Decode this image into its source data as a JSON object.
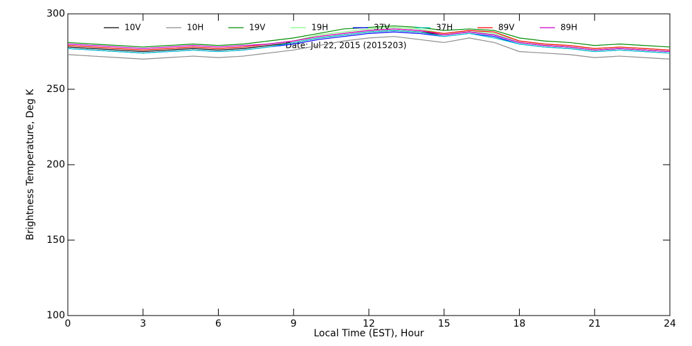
{
  "chart_data": {
    "type": "line",
    "title": "Date: Jul 22, 2015 (2015203)",
    "x_label": "Local Time (EST), Hour",
    "y_label": "Brightness Temperature, Deg K",
    "x": [
      0,
      1,
      2,
      3,
      4,
      5,
      6,
      7,
      8,
      9,
      10,
      11,
      12,
      13,
      14,
      15,
      16,
      17,
      18,
      19,
      20,
      21,
      22,
      23,
      24
    ],
    "xlim": [
      0,
      24
    ],
    "xticks": [
      0,
      3,
      6,
      9,
      12,
      15,
      18,
      21,
      24
    ],
    "ylim": [
      100,
      300
    ],
    "yticks": [
      100,
      150,
      200,
      250,
      300
    ],
    "series": [
      {
        "name": "10V",
        "color": "#000000",
        "values": [
          278,
          277,
          276,
          275,
          276,
          277,
          276,
          277,
          279,
          281,
          284,
          286,
          288,
          289,
          288,
          286,
          288,
          286,
          281,
          279,
          278,
          276,
          277,
          276,
          275
        ]
      },
      {
        "name": "10H",
        "color": "#8c8c8c",
        "values": [
          273,
          272,
          271,
          270,
          271,
          272,
          271,
          272,
          274,
          276,
          279,
          282,
          284,
          285,
          283,
          281,
          284,
          281,
          275,
          274,
          273,
          271,
          272,
          271,
          270
        ]
      },
      {
        "name": "19V",
        "color": "#008c00",
        "values": [
          281,
          280,
          279,
          278,
          279,
          280,
          279,
          280,
          282,
          284,
          287,
          290,
          291,
          292,
          291,
          289,
          290,
          289,
          284,
          282,
          281,
          279,
          280,
          279,
          278
        ]
      },
      {
        "name": "19H",
        "color": "#7fff7f",
        "values": [
          279,
          278,
          277,
          276,
          277,
          278,
          277,
          278,
          280,
          282,
          286,
          288,
          290,
          291,
          290,
          287,
          289,
          287,
          282,
          280,
          279,
          277,
          278,
          277,
          276
        ]
      },
      {
        "name": "37V",
        "color": "#0000ff",
        "values": [
          277,
          276,
          275,
          274,
          275,
          276,
          275,
          276,
          278,
          280,
          283,
          285,
          287,
          288,
          287,
          285,
          287,
          285,
          280,
          278,
          277,
          275,
          276,
          275,
          274
        ]
      },
      {
        "name": "37H",
        "color": "#00c8c8",
        "values": [
          277,
          276,
          275,
          274,
          275,
          276,
          275,
          276,
          278,
          281,
          284,
          286,
          288,
          289,
          288,
          285,
          287,
          284,
          280,
          278,
          277,
          275,
          276,
          275,
          274
        ]
      },
      {
        "name": "89V",
        "color": "#ff0000",
        "values": [
          279,
          278,
          277,
          276,
          277,
          278,
          277,
          278,
          280,
          282,
          285,
          287,
          289,
          290,
          289,
          287,
          289,
          288,
          282,
          280,
          279,
          277,
          278,
          277,
          276
        ]
      },
      {
        "name": "89H",
        "color": "#c800c8",
        "values": [
          280,
          279,
          278,
          277,
          278,
          279,
          278,
          279,
          280,
          282,
          285,
          287,
          289,
          290,
          289,
          286,
          288,
          286,
          281,
          279,
          278,
          276,
          277,
          276,
          275
        ]
      }
    ]
  }
}
